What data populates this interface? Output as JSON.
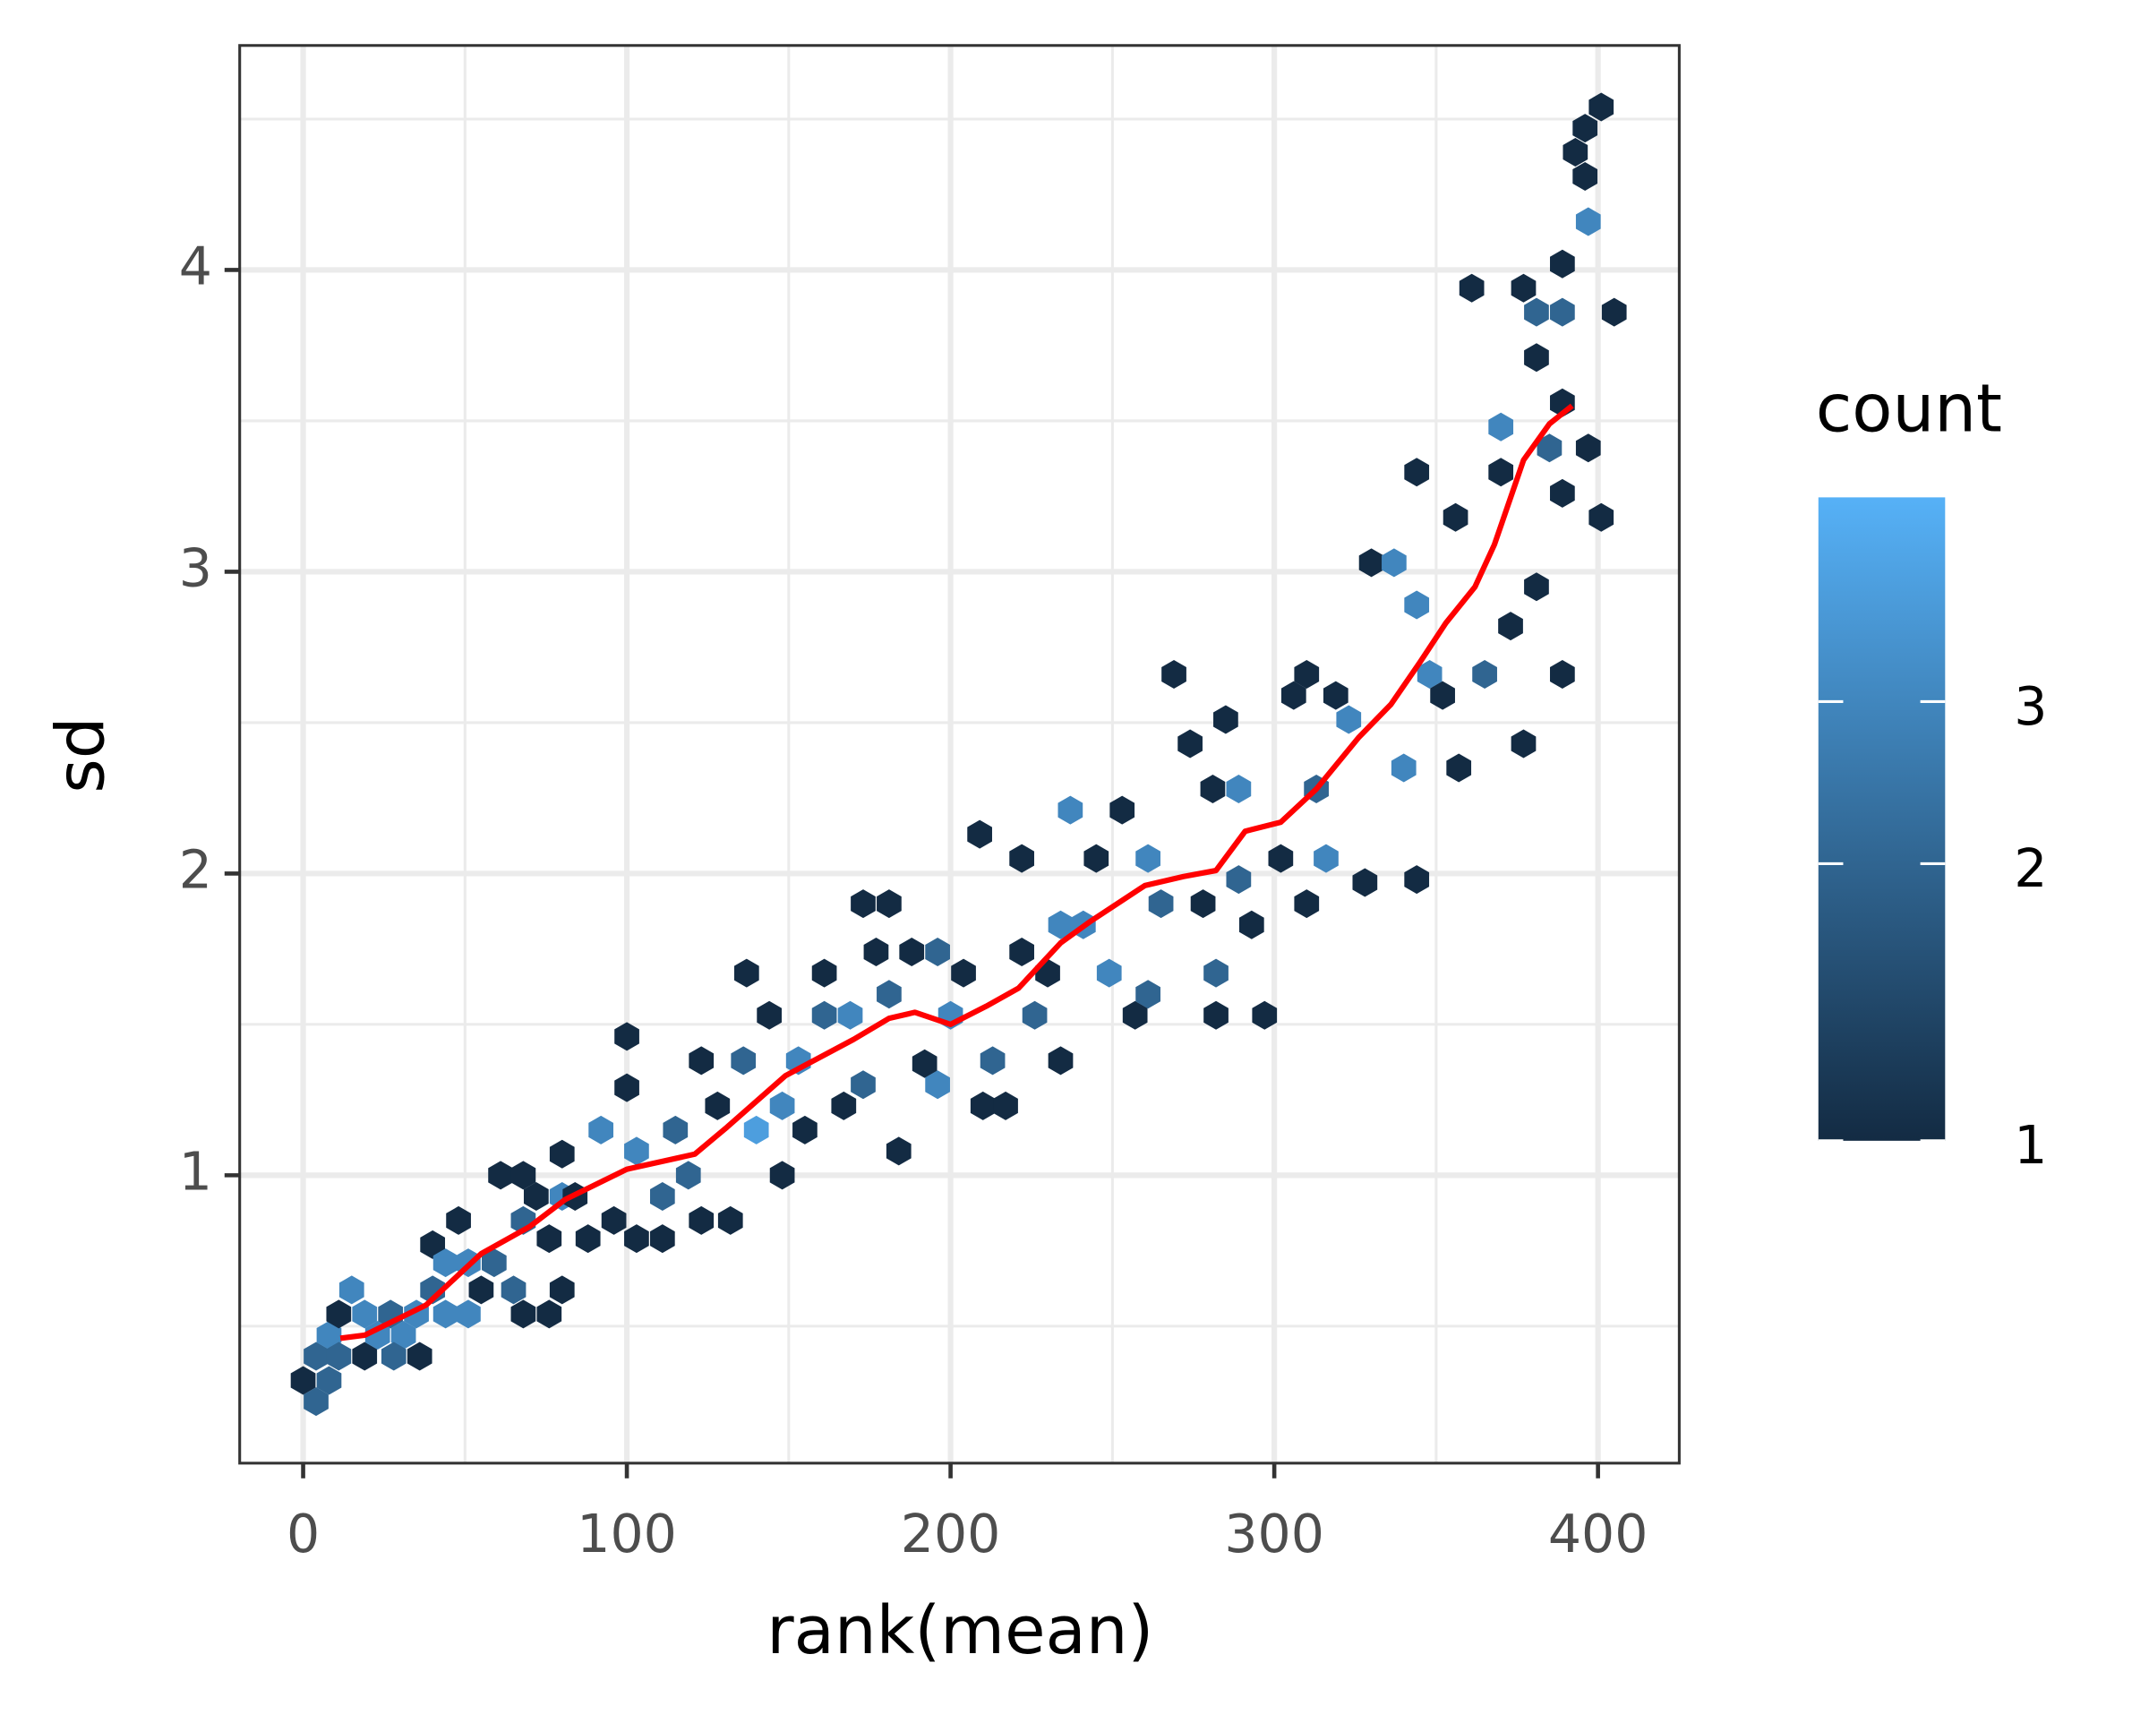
{
  "chart_data": {
    "type": "hexbin",
    "x_label": "rank(mean)",
    "y_label": "sd",
    "xlim": [
      -19.6,
      425.1
    ],
    "ylim": [
      0.046,
      4.744
    ],
    "xticks": [
      0,
      100,
      200,
      300,
      400
    ],
    "yticks": [
      1,
      2,
      3,
      4
    ],
    "xminor": [
      50,
      150,
      250,
      350
    ],
    "yminor": [
      0.5,
      1.5,
      2.5,
      3.5,
      4.5
    ],
    "grid": true,
    "hexes": {
      "x": [
        0,
        4,
        8,
        4,
        8,
        11,
        15,
        11,
        19,
        19,
        23,
        27,
        31,
        28,
        36,
        35,
        40,
        44,
        40,
        44,
        48,
        51,
        51,
        55,
        59,
        65,
        68,
        76,
        61,
        68,
        68,
        72,
        80,
        76,
        80,
        80,
        84,
        88,
        92,
        96,
        100,
        100,
        103,
        103,
        111,
        111,
        115,
        119,
        123,
        132,
        123,
        128,
        136,
        137,
        144,
        140,
        148,
        148,
        153,
        155,
        161,
        161,
        167,
        169,
        173,
        173,
        177,
        181,
        181,
        184,
        188,
        192,
        196,
        196,
        200,
        204,
        209,
        210,
        213,
        217,
        222,
        222,
        226,
        230,
        234,
        234,
        237,
        241,
        245,
        249,
        253,
        257,
        261,
        261,
        265,
        269,
        274,
        278,
        281,
        285,
        282,
        282,
        289,
        289,
        293,
        297,
        302,
        306,
        310,
        310,
        313,
        316,
        319,
        323,
        328,
        330,
        337,
        340,
        344,
        344,
        344,
        348,
        352,
        357,
        356,
        361,
        365,
        370,
        370,
        373,
        377,
        377,
        381,
        381,
        381,
        385,
        389,
        389,
        389,
        389,
        389,
        393,
        396,
        396,
        397,
        401,
        401,
        405,
        397
      ],
      "y": [
        0.32,
        0.25,
        0.32,
        0.4,
        0.47,
        0.54,
        0.62,
        0.4,
        0.54,
        0.4,
        0.47,
        0.54,
        0.47,
        0.4,
        0.4,
        0.54,
        0.62,
        0.54,
        0.77,
        0.71,
        0.85,
        0.71,
        0.54,
        0.62,
        0.71,
        0.62,
        0.54,
        0.54,
        1.0,
        1.0,
        0.85,
        0.93,
        0.93,
        0.79,
        0.62,
        1.07,
        0.93,
        0.79,
        1.15,
        0.85,
        1.29,
        1.46,
        1.08,
        0.79,
        0.93,
        0.79,
        1.15,
        1.0,
        0.85,
        0.85,
        1.38,
        1.23,
        1.38,
        1.67,
        1.53,
        1.15,
        1.23,
        1.0,
        1.38,
        1.15,
        1.67,
        1.53,
        1.23,
        1.53,
        1.3,
        1.9,
        1.74,
        1.6,
        1.9,
        1.08,
        1.74,
        1.37,
        1.3,
        1.74,
        1.53,
        1.67,
        2.13,
        1.23,
        1.38,
        1.23,
        2.05,
        1.74,
        1.53,
        1.67,
        1.83,
        1.38,
        2.21,
        1.83,
        2.05,
        1.67,
        2.21,
        1.53,
        2.05,
        1.6,
        1.9,
        2.66,
        2.43,
        1.9,
        2.28,
        2.51,
        1.67,
        1.53,
        2.28,
        1.98,
        1.83,
        1.53,
        2.05,
        2.59,
        2.66,
        1.9,
        2.28,
        2.05,
        2.59,
        2.51,
        1.97,
        3.03,
        3.03,
        2.35,
        3.33,
        1.98,
        2.89,
        2.66,
        2.59,
        2.35,
        3.18,
        3.94,
        2.66,
        3.48,
        3.33,
        2.82,
        2.43,
        3.94,
        3.86,
        3.71,
        2.95,
        3.41,
        3.56,
        3.26,
        2.66,
        4.02,
        3.86,
        4.39,
        4.47,
        4.31,
        4.16,
        4.54,
        3.18,
        3.86,
        3.41
      ],
      "count": [
        1,
        2,
        2,
        2,
        3,
        1,
        3,
        2,
        3,
        1,
        3,
        2,
        3,
        2,
        1,
        3,
        2,
        3,
        1,
        3,
        1,
        3,
        3,
        1,
        2,
        2,
        1,
        1,
        1,
        1,
        2,
        1,
        3,
        1,
        1,
        1,
        1,
        1,
        3,
        1,
        1,
        1,
        3,
        1,
        2,
        1,
        2,
        2,
        1,
        1,
        1,
        1,
        2,
        1,
        1,
        4,
        3,
        1,
        3,
        1,
        1,
        2,
        1,
        3,
        2,
        1,
        1,
        2,
        1,
        1,
        1,
        1,
        3,
        2,
        3,
        1,
        1,
        1,
        2,
        1,
        1,
        1,
        2,
        1,
        3,
        1,
        3,
        3,
        1,
        3,
        1,
        1,
        3,
        2,
        2,
        1,
        1,
        1,
        1,
        1,
        2,
        1,
        3,
        2,
        1,
        1,
        1,
        1,
        1,
        1,
        2,
        3,
        1,
        3,
        1,
        1,
        3,
        3,
        1,
        1,
        3,
        3,
        1,
        1,
        1,
        1,
        2,
        3,
        1,
        1,
        1,
        1,
        2,
        1,
        1,
        2,
        1,
        1,
        1,
        1,
        2,
        1,
        1,
        1,
        3,
        1,
        1,
        1,
        1
      ]
    },
    "trend": {
      "color": "#FF0000",
      "x": [
        11.5,
        19,
        38,
        55,
        70,
        81,
        100,
        121,
        131,
        149,
        170,
        181,
        189,
        200,
        211,
        221,
        234,
        243,
        260,
        272,
        282,
        291,
        302,
        313,
        326,
        336,
        345,
        353,
        362,
        368,
        377,
        385,
        392
      ],
      "y": [
        0.46,
        0.47,
        0.57,
        0.74,
        0.83,
        0.92,
        1.02,
        1.07,
        1.16,
        1.33,
        1.45,
        1.52,
        1.54,
        1.5,
        1.56,
        1.62,
        1.77,
        1.84,
        1.96,
        1.99,
        2.01,
        2.14,
        2.17,
        2.28,
        2.45,
        2.56,
        2.7,
        2.83,
        2.95,
        3.09,
        3.37,
        3.49,
        3.55
      ]
    },
    "legend": {
      "title": "count",
      "low": "#132B43",
      "high": "#56B1F7",
      "limits": [
        1,
        5
      ],
      "log": true,
      "ticks": [
        1,
        2,
        3
      ]
    }
  }
}
